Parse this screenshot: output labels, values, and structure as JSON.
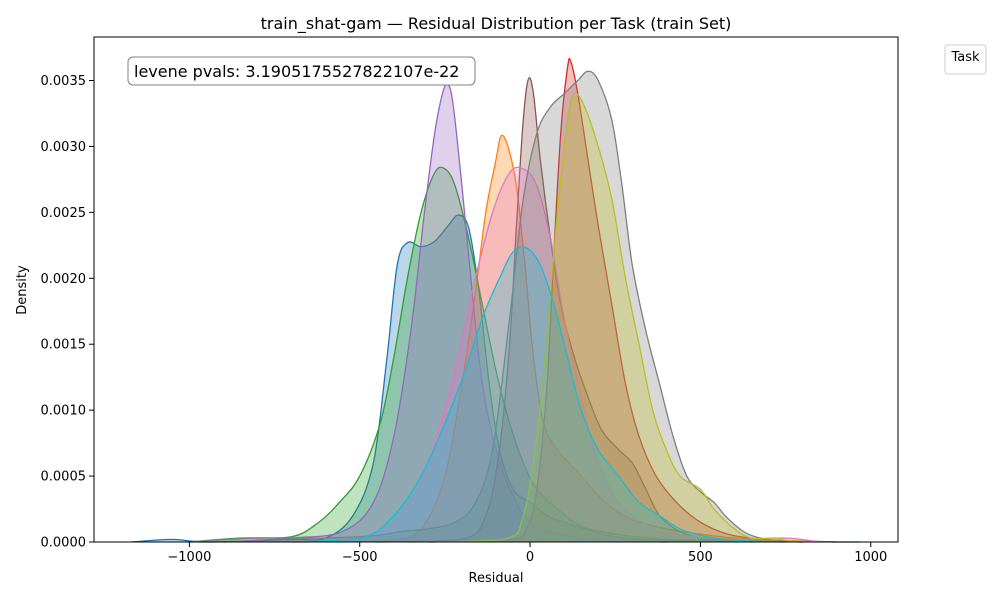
{
  "chart_data": {
    "type": "area",
    "title": "train_shat-gam — Residual Distribution per Task (train Set)",
    "xlabel": "Residual",
    "ylabel": "Density",
    "xlim": [
      -1280,
      1080
    ],
    "ylim": [
      0,
      0.00383
    ],
    "x_ticks": [
      -1000,
      -500,
      0,
      500,
      1000
    ],
    "x_tick_labels": [
      "−1000",
      "−500",
      "0",
      "500",
      "1000"
    ],
    "y_ticks": [
      0,
      0.0005,
      0.001,
      0.0015,
      0.002,
      0.0025,
      0.003,
      0.0035
    ],
    "y_tick_labels": [
      "0.0000",
      "0.0005",
      "0.0010",
      "0.0015",
      "0.0020",
      "0.0025",
      "0.0030",
      "0.0035"
    ],
    "grid": false,
    "legend": {
      "title": "Task",
      "placement": "outside-top-right",
      "entries": []
    },
    "annotation": {
      "text": "levene pvals: 3.1905175527822107e-22",
      "placement": "top-left"
    },
    "series": [
      {
        "color": "#1f77b4",
        "points": [
          [
            -1170,
            0
          ],
          [
            -1050,
            2e-05
          ],
          [
            -950,
            0
          ],
          [
            -700,
            2e-05
          ],
          [
            -600,
            3e-05
          ],
          [
            -520,
            0.0002
          ],
          [
            -460,
            0.0006
          ],
          [
            -420,
            0.0014
          ],
          [
            -390,
            0.0021
          ],
          [
            -360,
            0.00227
          ],
          [
            -320,
            0.00224
          ],
          [
            -280,
            0.00228
          ],
          [
            -240,
            0.0024
          ],
          [
            -210,
            0.00248
          ],
          [
            -180,
            0.00238
          ],
          [
            -150,
            0.0019
          ],
          [
            -120,
            0.0012
          ],
          [
            -90,
            0.0007
          ],
          [
            -50,
            0.0004
          ],
          [
            0,
            0.0003
          ],
          [
            50,
            0.0002
          ],
          [
            100,
            0.00015
          ],
          [
            160,
            0.0001
          ],
          [
            250,
            4e-05
          ],
          [
            400,
            1e-05
          ],
          [
            600,
            2e-05
          ],
          [
            900,
            0.0
          ],
          [
            970,
            0
          ]
        ]
      },
      {
        "color": "#ff7f0e",
        "points": [
          [
            -700,
            0
          ],
          [
            -420,
            1e-05
          ],
          [
            -320,
            0.0001
          ],
          [
            -250,
            0.0005
          ],
          [
            -200,
            0.0012
          ],
          [
            -160,
            0.0019
          ],
          [
            -130,
            0.0025
          ],
          [
            -100,
            0.0029
          ],
          [
            -85,
            0.00308
          ],
          [
            -65,
            0.003
          ],
          [
            -40,
            0.0027
          ],
          [
            -15,
            0.0021
          ],
          [
            10,
            0.0014
          ],
          [
            40,
            0.0009
          ],
          [
            80,
            0.0007
          ],
          [
            150,
            0.0005
          ],
          [
            220,
            0.0003
          ],
          [
            300,
            0.00017
          ],
          [
            400,
            0.0001
          ],
          [
            500,
            6e-05
          ],
          [
            600,
            3e-05
          ],
          [
            750,
            1e-05
          ],
          [
            900,
            0
          ]
        ]
      },
      {
        "color": "#2ca02c",
        "points": [
          [
            -1000,
            0
          ],
          [
            -850,
            3e-05
          ],
          [
            -700,
            4e-05
          ],
          [
            -620,
            0.00015
          ],
          [
            -560,
            0.0003
          ],
          [
            -500,
            0.0005
          ],
          [
            -440,
            0.0009
          ],
          [
            -400,
            0.0014
          ],
          [
            -360,
            0.002
          ],
          [
            -320,
            0.0025
          ],
          [
            -280,
            0.0028
          ],
          [
            -250,
            0.00283
          ],
          [
            -220,
            0.0027
          ],
          [
            -180,
            0.0023
          ],
          [
            -140,
            0.0018
          ],
          [
            -100,
            0.0013
          ],
          [
            -60,
            0.0009
          ],
          [
            -20,
            0.0006
          ],
          [
            20,
            0.0004
          ],
          [
            80,
            0.00025
          ],
          [
            150,
            0.00012
          ],
          [
            250,
            6e-05
          ],
          [
            400,
            2e-05
          ],
          [
            600,
            1e-05
          ],
          [
            800,
            0
          ]
        ]
      },
      {
        "color": "#d62728",
        "points": [
          [
            -300,
            0
          ],
          [
            -60,
            2e-05
          ],
          [
            -10,
            0.0001
          ],
          [
            20,
            0.0004
          ],
          [
            50,
            0.0012
          ],
          [
            70,
            0.0022
          ],
          [
            90,
            0.0031
          ],
          [
            110,
            0.0036
          ],
          [
            120,
            0.00364
          ],
          [
            140,
            0.0034
          ],
          [
            170,
            0.0029
          ],
          [
            200,
            0.0024
          ],
          [
            240,
            0.0018
          ],
          [
            280,
            0.0012
          ],
          [
            320,
            0.0008
          ],
          [
            370,
            0.0005
          ],
          [
            430,
            0.0003
          ],
          [
            500,
            0.00015
          ],
          [
            580,
            6e-05
          ],
          [
            680,
            2e-05
          ],
          [
            800,
            0
          ]
        ]
      },
      {
        "color": "#9467bd",
        "points": [
          [
            -900,
            0
          ],
          [
            -700,
            3e-05
          ],
          [
            -550,
            8e-05
          ],
          [
            -460,
            0.0003
          ],
          [
            -400,
            0.0008
          ],
          [
            -350,
            0.0016
          ],
          [
            -310,
            0.0025
          ],
          [
            -280,
            0.0031
          ],
          [
            -255,
            0.00342
          ],
          [
            -240,
            0.00347
          ],
          [
            -225,
            0.0033
          ],
          [
            -200,
            0.0027
          ],
          [
            -170,
            0.0019
          ],
          [
            -140,
            0.0012
          ],
          [
            -100,
            0.0007
          ],
          [
            -50,
            0.00035
          ],
          [
            0,
            0.00015
          ],
          [
            100,
            5e-05
          ],
          [
            250,
            1e-05
          ],
          [
            400,
            0
          ]
        ]
      },
      {
        "color": "#8c564b",
        "points": [
          [
            -450,
            0
          ],
          [
            -200,
            2e-05
          ],
          [
            -130,
            0.0002
          ],
          [
            -90,
            0.0007
          ],
          [
            -60,
            0.0015
          ],
          [
            -40,
            0.0024
          ],
          [
            -20,
            0.0032
          ],
          [
            -5,
            0.00351
          ],
          [
            10,
            0.0034
          ],
          [
            30,
            0.0029
          ],
          [
            60,
            0.0023
          ],
          [
            90,
            0.0018
          ],
          [
            130,
            0.0014
          ],
          [
            170,
            0.0011
          ],
          [
            210,
            0.00085
          ],
          [
            260,
            0.0007
          ],
          [
            300,
            0.0006
          ],
          [
            340,
            0.0004
          ],
          [
            380,
            0.0002
          ],
          [
            440,
            8e-05
          ],
          [
            520,
            2e-05
          ],
          [
            650,
            0
          ]
        ]
      },
      {
        "color": "#e377c2",
        "points": [
          [
            -750,
            0
          ],
          [
            -500,
            3e-05
          ],
          [
            -380,
            0.0002
          ],
          [
            -300,
            0.0006
          ],
          [
            -230,
            0.0012
          ],
          [
            -170,
            0.0019
          ],
          [
            -110,
            0.0025
          ],
          [
            -60,
            0.0028
          ],
          [
            -20,
            0.00283
          ],
          [
            20,
            0.0027
          ],
          [
            60,
            0.0023
          ],
          [
            100,
            0.0017
          ],
          [
            150,
            0.0011
          ],
          [
            200,
            0.0006
          ],
          [
            260,
            0.0003
          ],
          [
            350,
            0.00012
          ],
          [
            450,
            5e-05
          ],
          [
            600,
            2e-05
          ],
          [
            750,
            3e-05
          ],
          [
            850,
            0
          ]
        ]
      },
      {
        "color": "#7f7f7f",
        "points": [
          [
            -1000,
            0
          ],
          [
            -800,
            3e-05
          ],
          [
            -600,
            3e-05
          ],
          [
            -450,
            5e-05
          ],
          [
            -380,
            8e-05
          ],
          [
            -300,
            0.0001
          ],
          [
            -220,
            0.00015
          ],
          [
            -160,
            0.0003
          ],
          [
            -110,
            0.0007
          ],
          [
            -60,
            0.0017
          ],
          [
            -20,
            0.0026
          ],
          [
            20,
            0.0031
          ],
          [
            60,
            0.0033
          ],
          [
            100,
            0.0034
          ],
          [
            140,
            0.0035
          ],
          [
            170,
            0.00357
          ],
          [
            200,
            0.0035
          ],
          [
            240,
            0.0032
          ],
          [
            270,
            0.0027
          ],
          [
            300,
            0.0021
          ],
          [
            340,
            0.0016
          ],
          [
            380,
            0.0012
          ],
          [
            420,
            0.0008
          ],
          [
            460,
            0.0005
          ],
          [
            500,
            0.00038
          ],
          [
            540,
            0.0003
          ],
          [
            580,
            0.00018
          ],
          [
            640,
            6e-05
          ],
          [
            720,
            1e-05
          ],
          [
            800,
            0
          ]
        ]
      },
      {
        "color": "#bcbd22",
        "points": [
          [
            -350,
            0
          ],
          [
            -80,
            2e-05
          ],
          [
            -20,
            0.0002
          ],
          [
            20,
            0.0008
          ],
          [
            50,
            0.0016
          ],
          [
            80,
            0.0025
          ],
          [
            110,
            0.0032
          ],
          [
            130,
            0.0034
          ],
          [
            160,
            0.0033
          ],
          [
            200,
            0.003
          ],
          [
            240,
            0.0026
          ],
          [
            280,
            0.002
          ],
          [
            320,
            0.0015
          ],
          [
            360,
            0.001
          ],
          [
            400,
            0.0007
          ],
          [
            440,
            0.0005
          ],
          [
            500,
            0.0004
          ],
          [
            540,
            0.00025
          ],
          [
            600,
            0.0001
          ],
          [
            650,
            3e-05
          ],
          [
            720,
            3e-05
          ],
          [
            760,
            1e-05
          ],
          [
            850,
            0
          ]
        ]
      },
      {
        "color": "#17becf",
        "points": [
          [
            -750,
            0
          ],
          [
            -500,
            3e-05
          ],
          [
            -400,
            0.0002
          ],
          [
            -320,
            0.0005
          ],
          [
            -250,
            0.0009
          ],
          [
            -190,
            0.0013
          ],
          [
            -140,
            0.0017
          ],
          [
            -90,
            0.002
          ],
          [
            -50,
            0.0022
          ],
          [
            -10,
            0.00223
          ],
          [
            30,
            0.0021
          ],
          [
            70,
            0.0018
          ],
          [
            110,
            0.0014
          ],
          [
            150,
            0.001
          ],
          [
            200,
            0.0007
          ],
          [
            260,
            0.0005
          ],
          [
            320,
            0.0003
          ],
          [
            380,
            0.0002
          ],
          [
            440,
            0.0001
          ],
          [
            520,
            4e-05
          ],
          [
            620,
            1e-05
          ],
          [
            750,
            0
          ]
        ]
      }
    ]
  }
}
